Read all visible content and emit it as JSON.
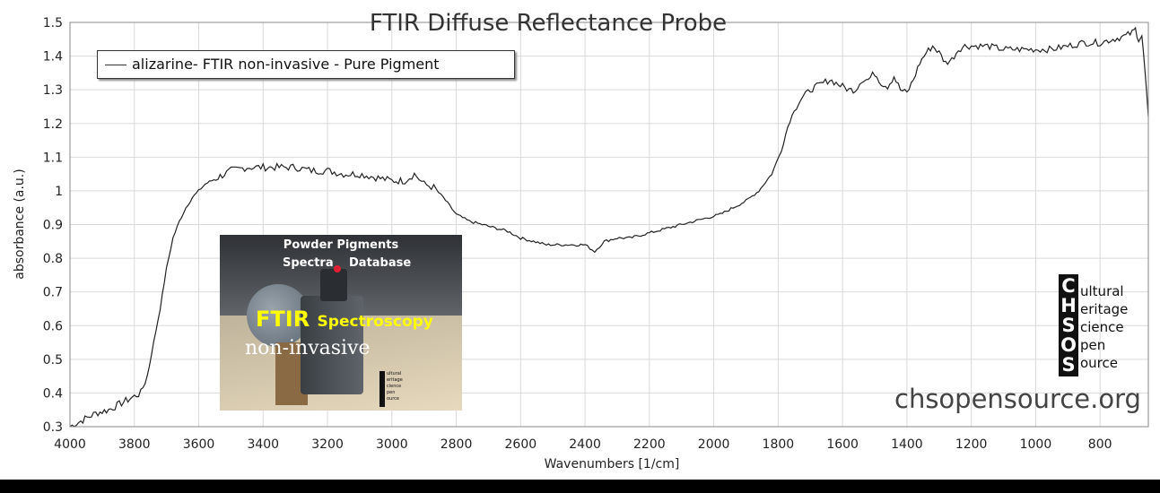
{
  "chart_data": {
    "type": "line",
    "title": "FTIR Diffuse Reflectance Probe",
    "xlabel": "Wavenumbers [1/cm]",
    "ylabel": "absorbance (a.u.)",
    "xlim": [
      4000,
      650
    ],
    "ylim": [
      0.3,
      1.5
    ],
    "x_reversed": true,
    "x_ticks": [
      4000,
      3800,
      3600,
      3400,
      3200,
      3000,
      2800,
      2600,
      2400,
      2200,
      2000,
      1800,
      1600,
      1400,
      1200,
      1000,
      800
    ],
    "y_ticks": [
      0.3,
      0.4,
      0.5,
      0.6,
      0.7,
      0.8,
      0.9,
      1,
      1.1,
      1.2,
      1.3,
      1.4,
      1.5
    ],
    "grid": true,
    "legend_position": "top-left",
    "series": [
      {
        "name": "alizarine- FTIR non-invasive - Pure Pigment",
        "color": "#222222",
        "x": [
          4000,
          3960,
          3920,
          3880,
          3840,
          3800,
          3780,
          3760,
          3740,
          3720,
          3700,
          3680,
          3660,
          3640,
          3620,
          3600,
          3580,
          3560,
          3540,
          3500,
          3450,
          3400,
          3350,
          3300,
          3250,
          3200,
          3150,
          3100,
          3050,
          3000,
          2960,
          2930,
          2900,
          2870,
          2840,
          2800,
          2760,
          2720,
          2680,
          2640,
          2600,
          2560,
          2520,
          2480,
          2440,
          2400,
          2370,
          2340,
          2300,
          2260,
          2220,
          2180,
          2140,
          2100,
          2060,
          2020,
          1980,
          1940,
          1900,
          1860,
          1820,
          1790,
          1770,
          1750,
          1730,
          1700,
          1680,
          1660,
          1640,
          1620,
          1600,
          1580,
          1560,
          1540,
          1520,
          1500,
          1480,
          1460,
          1440,
          1420,
          1400,
          1380,
          1360,
          1340,
          1320,
          1300,
          1280,
          1260,
          1240,
          1220,
          1200,
          1150,
          1100,
          1050,
          1000,
          950,
          900,
          850,
          800,
          760,
          720,
          700,
          690,
          680,
          670,
          660,
          650
        ],
        "y": [
          0.3,
          0.32,
          0.34,
          0.35,
          0.37,
          0.39,
          0.4,
          0.45,
          0.55,
          0.65,
          0.77,
          0.86,
          0.91,
          0.95,
          0.98,
          1.0,
          1.02,
          1.03,
          1.04,
          1.06,
          1.07,
          1.07,
          1.07,
          1.07,
          1.06,
          1.06,
          1.05,
          1.05,
          1.04,
          1.03,
          1.03,
          1.05,
          1.02,
          1.01,
          0.98,
          0.93,
          0.91,
          0.9,
          0.89,
          0.88,
          0.86,
          0.85,
          0.84,
          0.84,
          0.84,
          0.84,
          0.82,
          0.85,
          0.86,
          0.86,
          0.87,
          0.88,
          0.89,
          0.9,
          0.91,
          0.92,
          0.93,
          0.95,
          0.97,
          1.0,
          1.05,
          1.12,
          1.19,
          1.24,
          1.27,
          1.3,
          1.31,
          1.32,
          1.33,
          1.32,
          1.31,
          1.3,
          1.3,
          1.33,
          1.33,
          1.35,
          1.32,
          1.31,
          1.34,
          1.3,
          1.29,
          1.33,
          1.38,
          1.41,
          1.43,
          1.41,
          1.38,
          1.39,
          1.42,
          1.43,
          1.43,
          1.43,
          1.42,
          1.42,
          1.42,
          1.42,
          1.43,
          1.44,
          1.44,
          1.45,
          1.46,
          1.47,
          1.48,
          1.45,
          1.46,
          1.35,
          1.22
        ]
      }
    ]
  },
  "photo": {
    "line1": "Powder Pigments",
    "line2_left": "Spectra",
    "line2_right": "Database",
    "ftir": "FTIR",
    "spectroscopy": "Spectroscopy",
    "noninvasive": "non-invasive",
    "mini_logo": [
      "ultural",
      "eritage",
      "cience",
      "pen",
      "ource"
    ]
  },
  "logo": {
    "letters": [
      "C",
      "H",
      "S",
      "O",
      "S"
    ],
    "words": [
      "ultural",
      "eritage",
      "cience",
      "pen",
      "ource"
    ]
  },
  "website": "chsopensource.org"
}
